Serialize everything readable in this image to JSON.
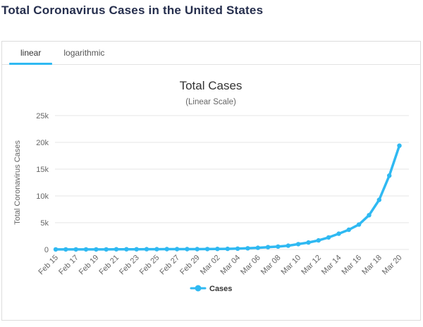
{
  "page": {
    "title": "Total Coronavirus Cases in the United States"
  },
  "tabs": [
    {
      "label": "linear",
      "active": true
    },
    {
      "label": "logarithmic",
      "active": false
    }
  ],
  "colors": {
    "accent": "#2fb9f2",
    "grid": "#e6e6e6",
    "axis_text": "#666666",
    "chart_title": "#333333",
    "page_title": "#252e4d",
    "panel_border": "#dcdcdc"
  },
  "chart_data": {
    "type": "line",
    "title": "Total Cases",
    "subtitle": "(Linear Scale)",
    "xlabel": "",
    "ylabel": "Total Coronavirus Cases",
    "ylim": [
      0,
      25000
    ],
    "grid": true,
    "legend_position": "bottom",
    "yticks": [
      {
        "value": 0,
        "label": "0"
      },
      {
        "value": 5000,
        "label": "5k"
      },
      {
        "value": 10000,
        "label": "10k"
      },
      {
        "value": 15000,
        "label": "15k"
      },
      {
        "value": 20000,
        "label": "20k"
      },
      {
        "value": 25000,
        "label": "25k"
      }
    ],
    "xtick_every": 2,
    "categories": [
      "Feb 15",
      "Feb 16",
      "Feb 17",
      "Feb 18",
      "Feb 19",
      "Feb 20",
      "Feb 21",
      "Feb 22",
      "Feb 23",
      "Feb 24",
      "Feb 25",
      "Feb 26",
      "Feb 27",
      "Feb 28",
      "Feb 29",
      "Mar 01",
      "Mar 02",
      "Mar 03",
      "Mar 04",
      "Mar 05",
      "Mar 06",
      "Mar 07",
      "Mar 08",
      "Mar 09",
      "Mar 10",
      "Mar 11",
      "Mar 12",
      "Mar 13",
      "Mar 14",
      "Mar 15",
      "Mar 16",
      "Mar 17",
      "Mar 18",
      "Mar 19",
      "Mar 20"
    ],
    "series": [
      {
        "name": "Cases",
        "color": "#2fb9f2",
        "values": [
          15,
          15,
          15,
          15,
          15,
          15,
          35,
          35,
          35,
          53,
          57,
          60,
          60,
          63,
          68,
          75,
          100,
          124,
          158,
          221,
          319,
          435,
          541,
          704,
          994,
          1301,
          1697,
          2247,
          2943,
          3680,
          4663,
          6411,
          9259,
          13789,
          19383
        ]
      }
    ]
  }
}
